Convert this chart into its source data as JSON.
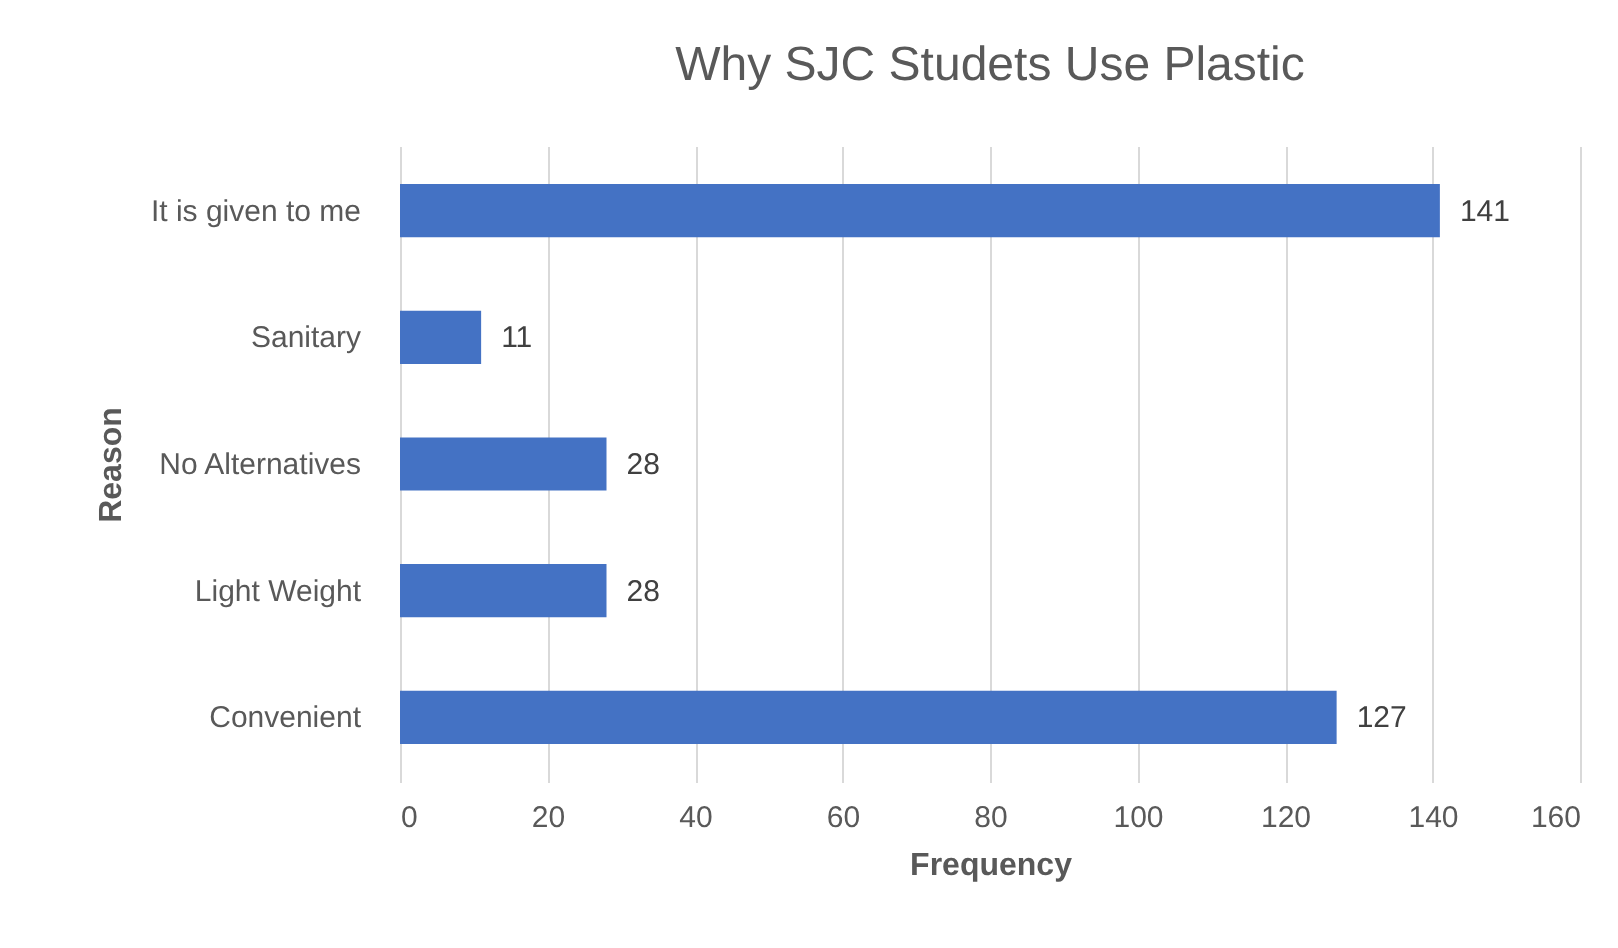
{
  "chart_data": {
    "type": "bar",
    "orientation": "horizontal",
    "title": "Why SJC Studets Use Plastic",
    "xlabel": "Frequency",
    "ylabel": "Reason",
    "categories": [
      "It is given to me",
      "Sanitary",
      "No Alternatives",
      "Light Weight",
      "Convenient"
    ],
    "values": [
      141,
      11,
      28,
      28,
      127
    ],
    "color": "#4472c4",
    "xlim": [
      0,
      160
    ],
    "xticks": [
      0,
      20,
      40,
      60,
      80,
      100,
      120,
      140,
      160
    ],
    "grid": "x",
    "data_labels": true
  }
}
